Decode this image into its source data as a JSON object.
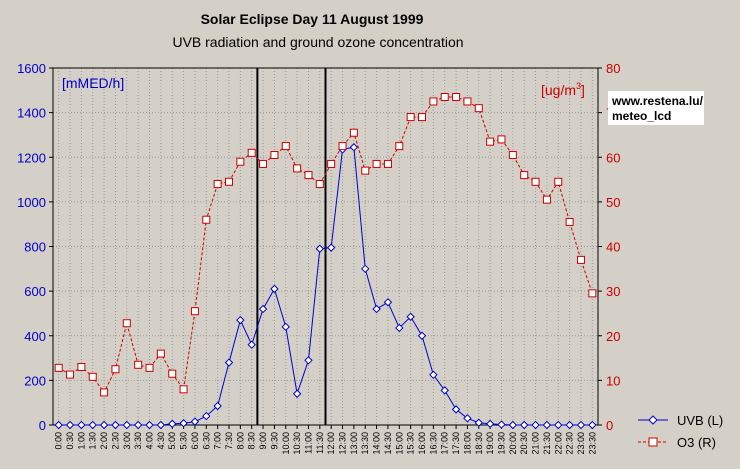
{
  "chart_data": {
    "type": "line",
    "title": "Solar Eclipse Day 11 August 1999",
    "subtitle": "UVB radiation and ground ozone concentration",
    "left_unit": "[mMED/h]",
    "right_unit_base": "[ug/m",
    "right_unit_sup": "3",
    "right_unit_end": "]",
    "source_line1": "www.restena.lu/",
    "source_line2": "meteo_lcd",
    "grid": true,
    "legend_placement": "bottom-right",
    "ylim_left": [
      0,
      1600
    ],
    "ylim_right": [
      0,
      80
    ],
    "yticks_left": [
      "0",
      "200",
      "400",
      "600",
      "800",
      "1000",
      "1200",
      "1400",
      "1600"
    ],
    "yticks_right": [
      "0",
      "10",
      "20",
      "30",
      "40",
      "50",
      "60",
      "70",
      "80"
    ],
    "x": [
      "0:00",
      "0:30",
      "1:00",
      "1:30",
      "2:00",
      "2:30",
      "3:00",
      "3:30",
      "4:00",
      "4:30",
      "5:00",
      "5:30",
      "6:00",
      "6:30",
      "7:00",
      "7:30",
      "8:00",
      "8:30",
      "9:00",
      "9:30",
      "10:00",
      "10:30",
      "11:00",
      "11:30",
      "12:00",
      "12:30",
      "13:00",
      "13:30",
      "14:00",
      "14:30",
      "15:00",
      "15:30",
      "16:00",
      "16:30",
      "17:00",
      "17:30",
      "18:00",
      "18:30",
      "19:00",
      "19:30",
      "20:00",
      "20:30",
      "21:00",
      "21:30",
      "22:00",
      "22:30",
      "23:00",
      "23:30"
    ],
    "eclipse_markers": [
      "9:00",
      "12:00"
    ],
    "series": [
      {
        "name": "UVB (L)",
        "axis": "left",
        "color": "#0000cc",
        "marker": "diamond",
        "line": "solid",
        "values": [
          0,
          0,
          0,
          0,
          0,
          0,
          0,
          0,
          0,
          0,
          5,
          8,
          15,
          40,
          85,
          280,
          470,
          360,
          520,
          610,
          440,
          140,
          290,
          790,
          795,
          1235,
          1245,
          700,
          520,
          550,
          435,
          485,
          400,
          225,
          155,
          70,
          30,
          10,
          5,
          2,
          0,
          0,
          0,
          0,
          0,
          0,
          0,
          0
        ]
      },
      {
        "name": "O3 (R)",
        "axis": "right",
        "color": "#cc0000",
        "marker": "square",
        "line": "dashed",
        "values": [
          12.8,
          11.3,
          13,
          10.8,
          7.3,
          12.5,
          22.8,
          13.5,
          12.8,
          16,
          11.5,
          8,
          25.5,
          46,
          54,
          54.5,
          59,
          61,
          58.5,
          60.5,
          62.5,
          57.5,
          56,
          54,
          58.5,
          62.5,
          65.5,
          57,
          58.5,
          58.5,
          62.5,
          69,
          69,
          72.5,
          73.5,
          73.5,
          72.5,
          71,
          63.5,
          64,
          60.5,
          56,
          54.5,
          50.5,
          54.5,
          45.5,
          37,
          29.5
        ]
      }
    ]
  }
}
